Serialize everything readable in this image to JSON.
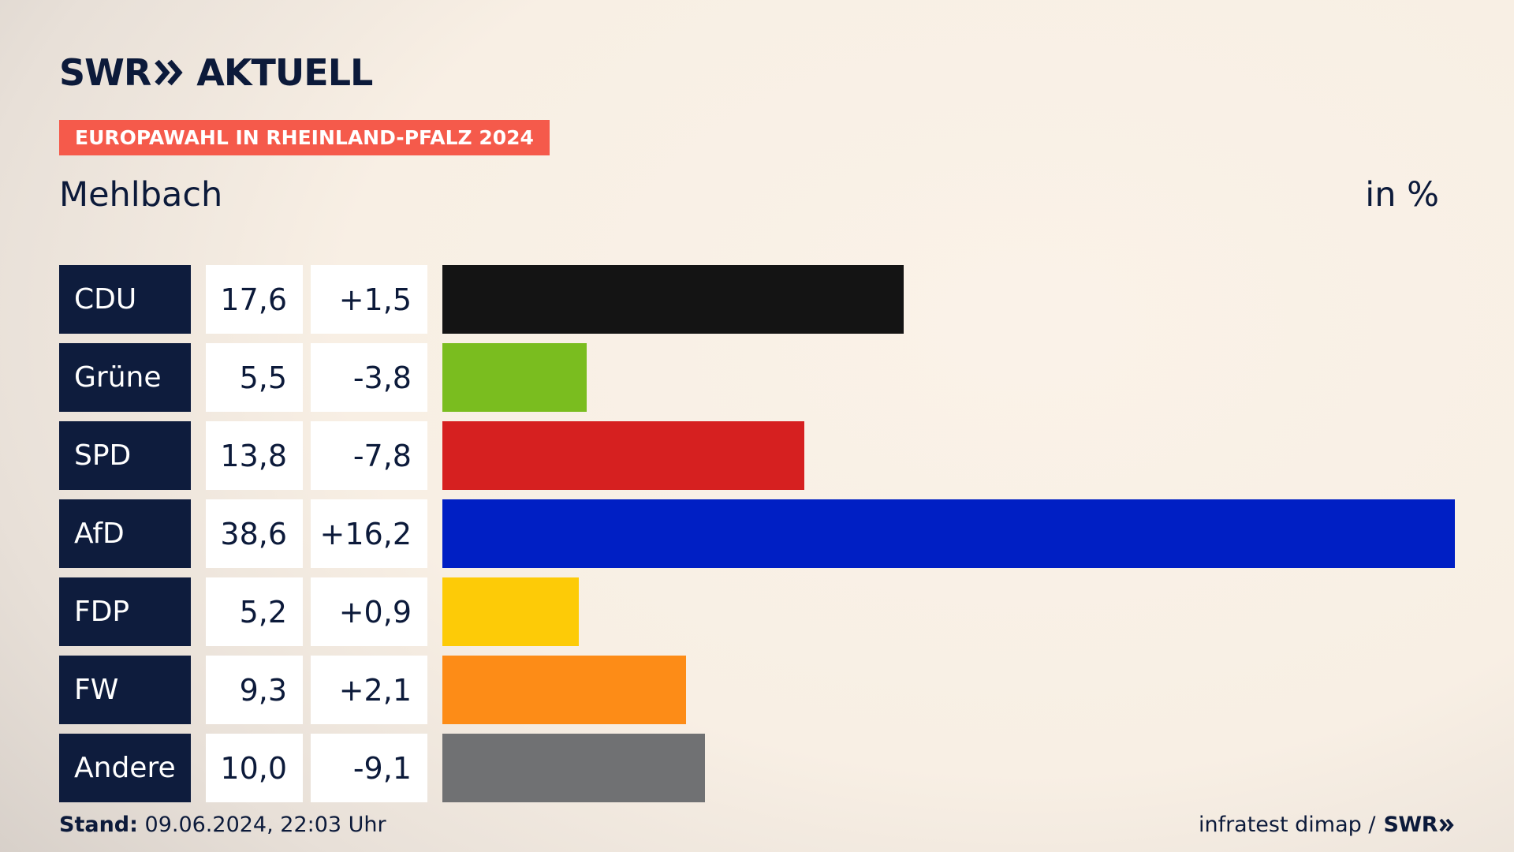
{
  "header": {
    "brand": "SWR",
    "section": "AKTUELL",
    "badge": "EUROPAWAHL IN RHEINLAND-PFALZ 2024",
    "region": "Mehlbach",
    "unit": "in %"
  },
  "colors": {
    "brand_navy": "#0e1c3d",
    "badge_red": "#f55a4b"
  },
  "chart_data": {
    "type": "bar",
    "orientation": "horizontal",
    "categories": [
      "CDU",
      "Grüne",
      "SPD",
      "AfD",
      "FDP",
      "FW",
      "Andere"
    ],
    "values": [
      17.6,
      5.5,
      13.8,
      38.6,
      5.2,
      9.3,
      10.0
    ],
    "values_label": [
      "17,6",
      "5,5",
      "13,8",
      "38,6",
      "5,2",
      "9,3",
      "10,0"
    ],
    "changes": [
      1.5,
      -3.8,
      -7.8,
      16.2,
      0.9,
      2.1,
      -9.1
    ],
    "changes_label": [
      "+1,5",
      "-3,8",
      "-7,8",
      "+16,2",
      "+0,9",
      "+2,1",
      "-9,1"
    ],
    "colors": [
      "#141414",
      "#7abd1f",
      "#d62020",
      "#001fc4",
      "#fdcb07",
      "#fd8c17",
      "#707173"
    ],
    "title": "Mehlbach",
    "xlabel": "",
    "ylabel": "in %",
    "grid": false
  },
  "footer": {
    "stand_label": "Stand:",
    "stand_value": "09.06.2024, 22:03 Uhr",
    "source": "infratest dimap /",
    "source_logo": "SWR"
  }
}
